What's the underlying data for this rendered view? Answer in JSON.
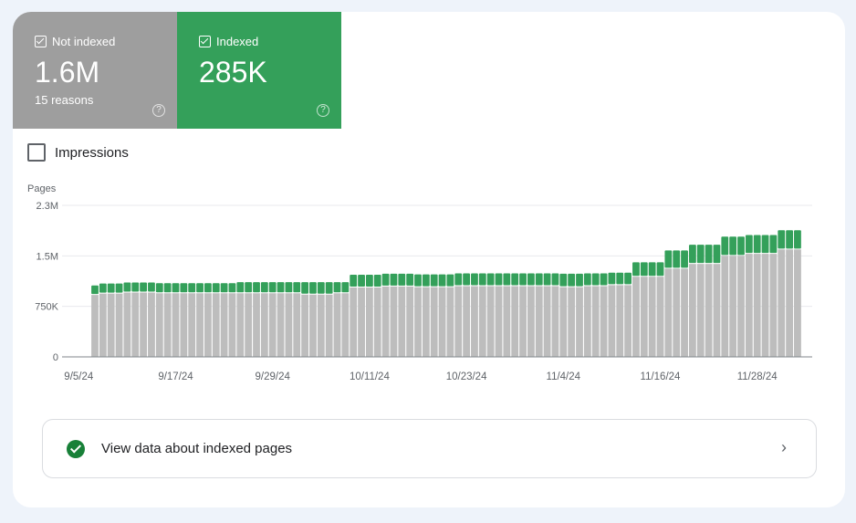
{
  "tiles": {
    "not_indexed": {
      "label": "Not indexed",
      "value": "1.6M",
      "sub": "15 reasons",
      "help": "?"
    },
    "indexed": {
      "label": "Indexed",
      "value": "285K",
      "help": "?"
    }
  },
  "impressions_label": "Impressions",
  "view_button": {
    "label": "View data about indexed pages",
    "chevron": "›"
  },
  "colors": {
    "not_indexed": "#bdbdbd",
    "indexed": "#34a05a"
  },
  "chart_data": {
    "type": "bar",
    "stacked": true,
    "ylabel": "Pages",
    "ylim": [
      0,
      2250
    ],
    "y_ticks": [
      {
        "value": 0,
        "label": "0"
      },
      {
        "value": 750,
        "label": "750K"
      },
      {
        "value": 1500,
        "label": "1.5M"
      },
      {
        "value": 2250,
        "label": "2.3M"
      }
    ],
    "start_date": "9/7/24",
    "x_ticks": [
      {
        "index": -2,
        "label": "9/5/24"
      },
      {
        "index": 10,
        "label": "9/17/24"
      },
      {
        "index": 22,
        "label": "9/29/24"
      },
      {
        "index": 34,
        "label": "10/11/24"
      },
      {
        "index": 46,
        "label": "10/23/24"
      },
      {
        "index": 58,
        "label": "11/4/24"
      },
      {
        "index": 70,
        "label": "11/16/24"
      },
      {
        "index": 82,
        "label": "11/28/24"
      }
    ],
    "series": [
      {
        "name": "Not indexed",
        "unit": "thousands",
        "values": [
          920,
          940,
          940,
          940,
          955,
          955,
          955,
          955,
          945,
          945,
          945,
          945,
          945,
          945,
          945,
          945,
          945,
          945,
          945,
          945,
          945,
          945,
          945,
          945,
          945,
          945,
          925,
          925,
          925,
          925,
          945,
          945,
          1030,
          1030,
          1030,
          1030,
          1045,
          1045,
          1045,
          1045,
          1035,
          1035,
          1035,
          1035,
          1035,
          1050,
          1050,
          1050,
          1050,
          1050,
          1050,
          1050,
          1050,
          1050,
          1050,
          1050,
          1050,
          1050,
          1035,
          1035,
          1035,
          1050,
          1050,
          1050,
          1065,
          1065,
          1065,
          1190,
          1190,
          1190,
          1190,
          1310,
          1310,
          1310,
          1380,
          1380,
          1380,
          1380,
          1500,
          1500,
          1500,
          1530,
          1530,
          1530,
          1530,
          1595,
          1595,
          1595
        ]
      },
      {
        "name": "Indexed",
        "unit": "thousands",
        "values": [
          140,
          150,
          150,
          150,
          150,
          150,
          150,
          150,
          150,
          150,
          150,
          150,
          150,
          150,
          150,
          150,
          150,
          150,
          165,
          165,
          165,
          165,
          165,
          165,
          165,
          165,
          185,
          185,
          185,
          185,
          165,
          165,
          190,
          190,
          190,
          190,
          190,
          190,
          190,
          190,
          190,
          190,
          190,
          190,
          190,
          190,
          190,
          190,
          190,
          190,
          190,
          190,
          190,
          190,
          190,
          190,
          190,
          190,
          200,
          200,
          200,
          190,
          190,
          190,
          185,
          185,
          185,
          215,
          215,
          215,
          215,
          270,
          270,
          270,
          285,
          285,
          285,
          285,
          285,
          285,
          285,
          280,
          280,
          280,
          280,
          285,
          285,
          285
        ]
      }
    ]
  }
}
